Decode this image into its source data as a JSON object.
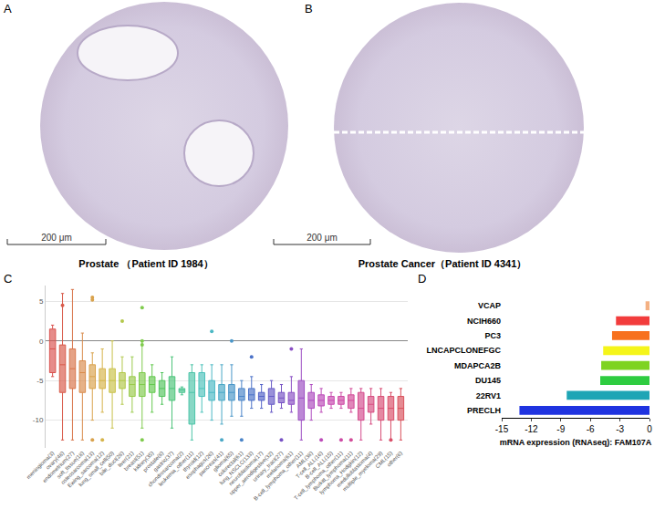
{
  "panels": [
    {
      "label": "A",
      "caption": "Prostate （Patient ID 1984）",
      "scale_bar": "200 μm"
    },
    {
      "label": "B",
      "caption": "Prostate Cancer（Patient ID 4341）",
      "scale_bar": "200 μm"
    }
  ],
  "chart_data": [
    {
      "type": "box",
      "panel": "C",
      "categories": [
        "meningioma(3)",
        "ovary(48)",
        "endometrium(27)",
        "soft_tissue(18)",
        "osteosarcoma(13)",
        "Ewing_sarcoma(12)",
        "lung_small_cell(50)",
        "bile_duct(28)",
        "liver(21)",
        "breast(51)",
        "kidney(35)",
        "prostate(8)",
        "gastric(37)",
        "chondrosarcoma(2)",
        "leukemia_other(11)",
        "thyroid(12)",
        "esophagus(26)",
        "pancreas(41)",
        "glioma(65)",
        "colorectal(61)",
        "lung_NSCLC(133)",
        "neuroblastoma(17)",
        "upper_aerodigestive(32)",
        "urinary_tract(27)",
        "melanoma(61)",
        "B-cell_lymphoma_other(11)",
        "AML(38)",
        "T-cell_ALL(16)",
        "B-cell_ALL(15)",
        "T-cell_lymphoma_other(11)",
        "Burkitt_lymphoma(11)",
        "lymphoma_Hodgkin(12)",
        "medulloblastoma(4)",
        "multiple_myeloma(29)",
        "CML(15)",
        "other(6)"
      ],
      "q1": [
        -4,
        -6.5,
        -6,
        -6.5,
        -6,
        -6,
        -6.5,
        -6,
        -7,
        -7,
        -6.5,
        -7,
        -7.5,
        -6.5,
        -10.5,
        -7,
        -7.5,
        -7.5,
        -7.5,
        -7.5,
        -7.5,
        -7.5,
        -8,
        -7.8,
        -8,
        -10,
        -8.5,
        -8.2,
        -8,
        -8,
        -8.5,
        -10,
        -9,
        -10,
        -10,
        -10
      ],
      "median": [
        -1,
        -3,
        -3.5,
        -4,
        -4.5,
        -5,
        -5,
        -5,
        -5.5,
        -5.5,
        -5.5,
        -6,
        -6,
        -6.2,
        -6.5,
        -6,
        -6.5,
        -6.5,
        -6.5,
        -7,
        -6.8,
        -7,
        -7,
        -7.2,
        -7.5,
        -7.2,
        -7.5,
        -7.5,
        -7.5,
        -7.5,
        -7.5,
        -8.5,
        -8,
        -8.5,
        -8.5,
        -8.5
      ],
      "q3": [
        1.5,
        -0.5,
        -1,
        -2.5,
        -3,
        -3.5,
        -3.5,
        -4,
        -4.5,
        -4,
        -4.5,
        -5,
        -4.5,
        -6,
        -4,
        -4,
        -5,
        -5.5,
        -5.5,
        -6,
        -6,
        -6.5,
        -6,
        -6.5,
        -6.5,
        -5,
        -6.5,
        -6.8,
        -7,
        -7,
        -6.8,
        -6.5,
        -7,
        -7,
        -7,
        -7
      ],
      "lowerfence": [
        -4.5,
        -12.5,
        -12.5,
        -12.5,
        -10,
        -9,
        -11,
        -8,
        -9,
        -11,
        -9,
        -8,
        -11,
        -6.8,
        -12.5,
        -9,
        -10,
        -10.5,
        -9.5,
        -9.5,
        -8.5,
        -8.5,
        -9,
        -8.5,
        -9,
        -12.5,
        -10,
        -9,
        -8.5,
        -8.5,
        -9,
        -12.5,
        -10.5,
        -12.5,
        -12.5,
        -12.5
      ],
      "upperfence": [
        2,
        6,
        6.5,
        1,
        -1.5,
        -1,
        0,
        -2,
        -2,
        0,
        -3,
        -4,
        -2,
        -5.8,
        -3,
        -3,
        -3,
        -3,
        -3,
        -5,
        -4.5,
        -5.5,
        -5,
        -5.5,
        -4.5,
        -1,
        -5.5,
        -6,
        -6.5,
        -6.5,
        -6,
        -6,
        -6,
        -6,
        -6.5,
        -6
      ],
      "outliers": [
        [],
        [
          4.5
        ],
        [],
        [],
        [
          5.5,
          5.2,
          -12.5
        ],
        [
          -12.5
        ],
        [],
        [
          2.5
        ],
        [],
        [
          4.2,
          0,
          -0.5,
          -12.5
        ],
        [],
        [],
        [],
        [],
        [],
        [],
        [
          1.2
        ],
        [
          -12.5
        ],
        [
          0
        ],
        [
          -12.5
        ],
        [
          -2
        ],
        [],
        [],
        [
          -12.5
        ],
        [
          -1
        ],
        [],
        [],
        [
          -12.5
        ],
        [],
        [
          -12.5
        ],
        [
          -12.5
        ],
        [],
        [],
        [],
        [
          -12.5
        ],
        []
      ],
      "colors": [
        "#d9534f",
        "#d85a4a",
        "#d8744a",
        "#d98b4c",
        "#d9a24c",
        "#d6b44b",
        "#c9c24a",
        "#b3c84b",
        "#9acb4c",
        "#7fcb4d",
        "#64c94f",
        "#52c45e",
        "#4cc47a",
        "#4cc491",
        "#4cc4a8",
        "#4cc2bb",
        "#4bb8c4",
        "#4aa8c6",
        "#4a96c8",
        "#4a84c8",
        "#4b72c8",
        "#5363c8",
        "#6659c6",
        "#7752c4",
        "#8a4fc4",
        "#9b4dc2",
        "#ad4bbf",
        "#bc4ab8",
        "#c84aaf",
        "#cd4aa4",
        "#d24b98",
        "#d44b8d",
        "#d64c80",
        "#d84d74",
        "#d94e68",
        "#d9505c"
      ],
      "ylim": [
        -13.5,
        7
      ],
      "yticks": [
        5,
        0,
        -5,
        -10
      ],
      "grid": true
    },
    {
      "type": "bar",
      "panel": "D",
      "orientation": "horizontal",
      "categories": [
        "VCAP",
        "NCIH660",
        "PC3",
        "LNCAPCLONEFGC",
        "MDAPCA2B",
        "DU145",
        "22RV1",
        "PRECLH"
      ],
      "values": [
        -0.4,
        -3.4,
        -3.8,
        -4.7,
        -4.9,
        -5.0,
        -8.4,
        -13.2
      ],
      "colors": [
        "#f4b183",
        "#f23c3c",
        "#f7711e",
        "#f5f51a",
        "#7ed321",
        "#2ecc40",
        "#1ea5b5",
        "#1f33e0"
      ],
      "x_label": "mRNA expression (RNAseq): FAM107A",
      "xlim": [
        -15,
        0
      ],
      "xticks": [
        -15,
        -12,
        -9,
        -6,
        -3,
        0
      ],
      "grid": false
    }
  ]
}
